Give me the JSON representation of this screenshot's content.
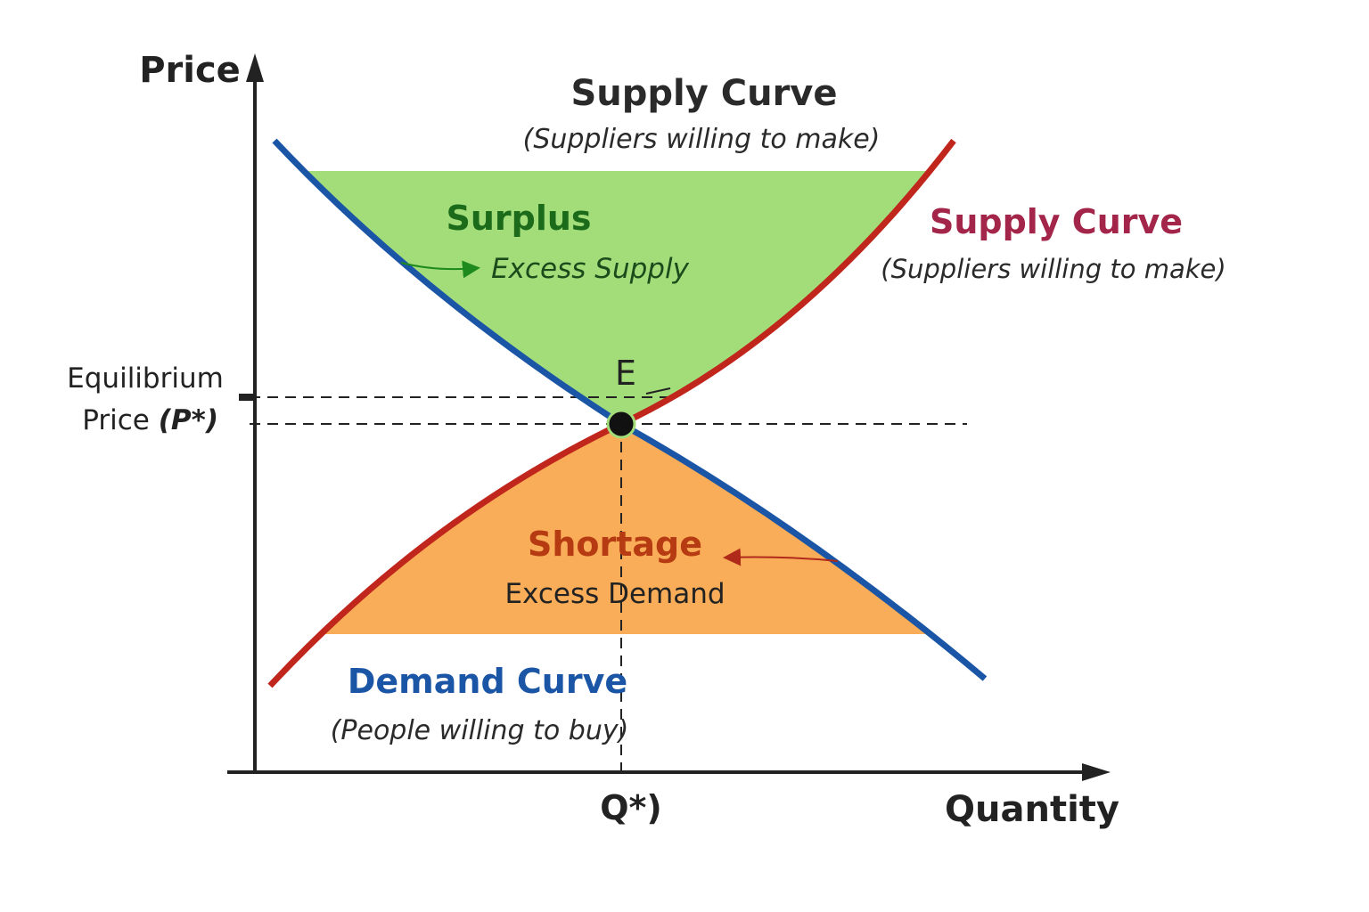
{
  "axes": {
    "y_label": "Price",
    "x_label": "Quantity"
  },
  "title": {
    "text": "Supply Curve",
    "subtitle": "(Suppliers willing to make)"
  },
  "supply_curve": {
    "label": "Supply Curve",
    "note": "(Suppliers willing to make)"
  },
  "demand_curve": {
    "label": "Demand Curve",
    "note": "(People willing to buy)"
  },
  "surplus": {
    "label": "Surplus",
    "note": "Excess Supply"
  },
  "shortage": {
    "label": "Shortage",
    "note": "Excess Demand"
  },
  "equilibrium": {
    "point": "E",
    "price_label": {
      "line1": "Equilibrium",
      "line2": "Price",
      "symbol": "(P*)"
    },
    "quantity_label": "Q*)"
  }
}
